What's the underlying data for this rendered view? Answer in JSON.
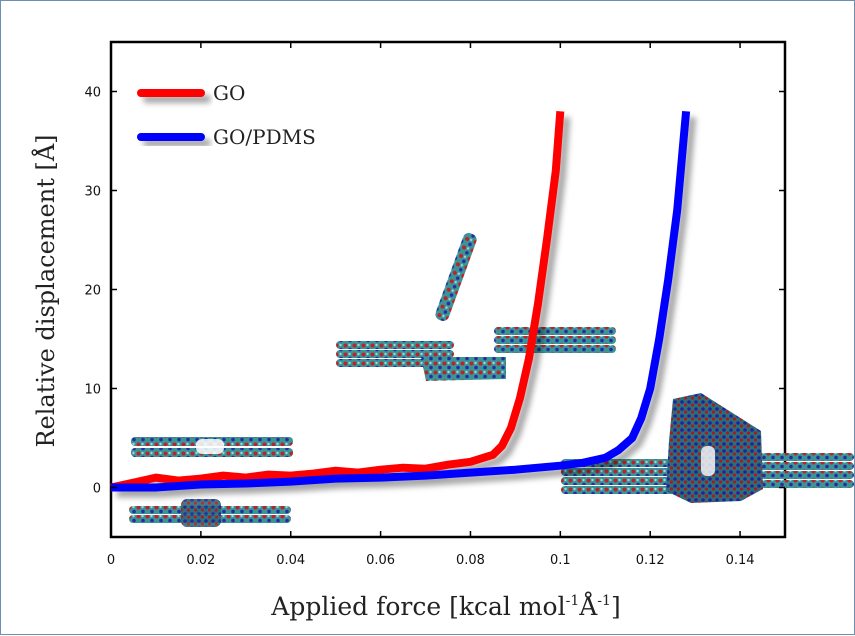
{
  "chart_data": {
    "type": "line",
    "title": "",
    "xlabel": "Applied force [kcal mol",
    "xlabel_sup1": "-1",
    "xlabel_mid": "Å",
    "xlabel_sup2": "-1",
    "xlabel_end": "]",
    "ylabel": "Relative displacement [Å]",
    "xlim": [
      0,
      0.15
    ],
    "ylim": [
      -5,
      45
    ],
    "xticks": [
      "0",
      "0.02",
      "0.04",
      "0.06",
      "0.08",
      "0.1",
      "0.12",
      "0.14"
    ],
    "xtick_values": [
      0,
      0.02,
      0.04,
      0.06,
      0.08,
      0.1,
      0.12,
      0.14
    ],
    "yticks": [
      "0",
      "10",
      "20",
      "30",
      "40"
    ],
    "ytick_values": [
      0,
      10,
      20,
      30,
      40
    ],
    "grid": false,
    "legend_position": "top-left",
    "series": [
      {
        "name": "GO",
        "color": "#ff0000",
        "x": [
          0,
          0.005,
          0.01,
          0.015,
          0.02,
          0.025,
          0.03,
          0.035,
          0.04,
          0.045,
          0.05,
          0.055,
          0.06,
          0.065,
          0.07,
          0.075,
          0.08,
          0.085,
          0.087,
          0.089,
          0.091,
          0.093,
          0.095,
          0.097,
          0.099,
          0.1
        ],
        "y": [
          0,
          0.5,
          1.0,
          0.7,
          0.9,
          1.2,
          1.0,
          1.3,
          1.2,
          1.4,
          1.7,
          1.5,
          1.8,
          2.0,
          1.9,
          2.3,
          2.6,
          3.3,
          4.2,
          6.0,
          9.0,
          13.0,
          18.5,
          25.0,
          32.0,
          38.0
        ]
      },
      {
        "name": "GO/PDMS",
        "color": "#0000ff",
        "x": [
          0,
          0.01,
          0.02,
          0.03,
          0.04,
          0.05,
          0.06,
          0.07,
          0.08,
          0.09,
          0.1,
          0.105,
          0.11,
          0.113,
          0.116,
          0.118,
          0.12,
          0.122,
          0.124,
          0.126,
          0.128
        ],
        "y": [
          0,
          0.0,
          0.3,
          0.4,
          0.6,
          0.9,
          1.0,
          1.2,
          1.5,
          1.8,
          2.2,
          2.5,
          3.0,
          3.8,
          5.0,
          7.0,
          10.0,
          15.0,
          21.0,
          28.0,
          38.0
        ]
      }
    ]
  }
}
